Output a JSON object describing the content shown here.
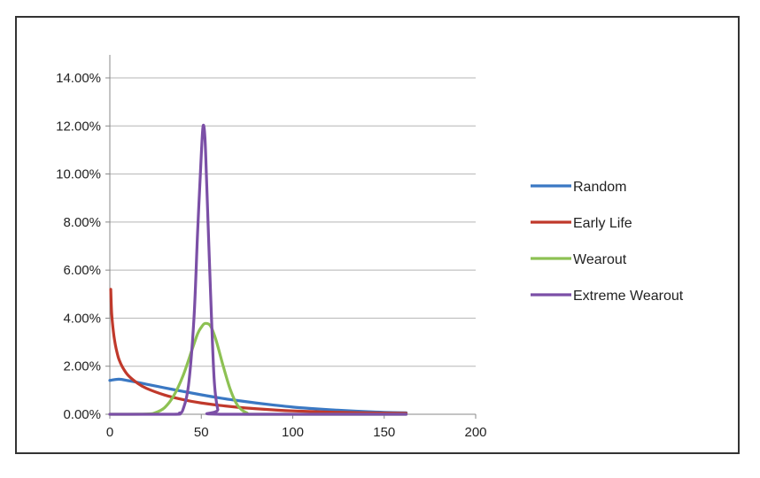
{
  "chart_data": {
    "type": "line",
    "title": "",
    "xlabel": "",
    "ylabel": "",
    "xlim": [
      0,
      200
    ],
    "ylim": [
      0,
      0.14
    ],
    "x_ticks": [
      0,
      50,
      100,
      150,
      200
    ],
    "x_tick_labels": [
      "0",
      "50",
      "100",
      "150",
      "200"
    ],
    "y_ticks": [
      0,
      0.02,
      0.04,
      0.06,
      0.08,
      0.1,
      0.12,
      0.14
    ],
    "y_tick_labels": [
      "0.00%",
      "2.00%",
      "4.00%",
      "6.00%",
      "8.00%",
      "10.00%",
      "12.00%",
      "14.00%"
    ],
    "grid": "horizontal",
    "legend_position": "right",
    "series": [
      {
        "name": "Random",
        "color": "#3a78c3",
        "points": [
          [
            0,
            0.0141
          ],
          [
            5,
            0.0146
          ],
          [
            10,
            0.014
          ],
          [
            15,
            0.0133
          ],
          [
            20,
            0.0125
          ],
          [
            30,
            0.011
          ],
          [
            40,
            0.0095
          ],
          [
            50,
            0.0081
          ],
          [
            60,
            0.0068
          ],
          [
            70,
            0.0057
          ],
          [
            80,
            0.0047
          ],
          [
            90,
            0.0038
          ],
          [
            100,
            0.003
          ],
          [
            110,
            0.0024
          ],
          [
            120,
            0.0019
          ],
          [
            130,
            0.0015
          ],
          [
            140,
            0.0011
          ],
          [
            150,
            0.0008
          ],
          [
            162,
            0.0006
          ]
        ]
      },
      {
        "name": "Early Life",
        "color": "#c0392b",
        "points": [
          [
            0.5,
            0.052
          ],
          [
            1,
            0.042
          ],
          [
            2,
            0.034
          ],
          [
            3,
            0.029
          ],
          [
            4,
            0.0255
          ],
          [
            5,
            0.0228
          ],
          [
            7,
            0.0195
          ],
          [
            10,
            0.0162
          ],
          [
            15,
            0.013
          ],
          [
            20,
            0.0108
          ],
          [
            30,
            0.008
          ],
          [
            40,
            0.0061
          ],
          [
            50,
            0.0047
          ],
          [
            60,
            0.0037
          ],
          [
            70,
            0.0029
          ],
          [
            80,
            0.0023
          ],
          [
            90,
            0.0018
          ],
          [
            100,
            0.0014
          ],
          [
            120,
            0.0009
          ],
          [
            140,
            0.0006
          ],
          [
            162,
            0.0004
          ]
        ]
      },
      {
        "name": "Wearout",
        "color": "#8dc153",
        "points": [
          [
            0,
            0.0
          ],
          [
            20,
            0.0001
          ],
          [
            25,
            0.0007
          ],
          [
            30,
            0.0028
          ],
          [
            35,
            0.0078
          ],
          [
            40,
            0.016
          ],
          [
            45,
            0.027
          ],
          [
            48,
            0.0335
          ],
          [
            50,
            0.0362
          ],
          [
            52,
            0.0378
          ],
          [
            55,
            0.0368
          ],
          [
            58,
            0.031
          ],
          [
            62,
            0.02
          ],
          [
            66,
            0.01
          ],
          [
            70,
            0.0035
          ],
          [
            75,
            0.0005
          ],
          [
            80,
            0.0
          ],
          [
            162,
            0.0
          ]
        ]
      },
      {
        "name": "Extreme Wearout",
        "color": "#7b4fa6",
        "points": [
          [
            0,
            0.0
          ],
          [
            35,
            0.0
          ],
          [
            38,
            0.0005
          ],
          [
            40,
            0.002
          ],
          [
            43,
            0.012
          ],
          [
            46,
            0.04
          ],
          [
            48,
            0.076
          ],
          [
            50,
            0.108
          ],
          [
            51,
            0.12
          ],
          [
            52,
            0.115
          ],
          [
            53,
            0.095
          ],
          [
            55,
            0.052
          ],
          [
            57,
            0.015
          ],
          [
            59,
            0.002
          ],
          [
            61,
            0.0
          ],
          [
            162,
            0.0
          ]
        ]
      }
    ]
  }
}
